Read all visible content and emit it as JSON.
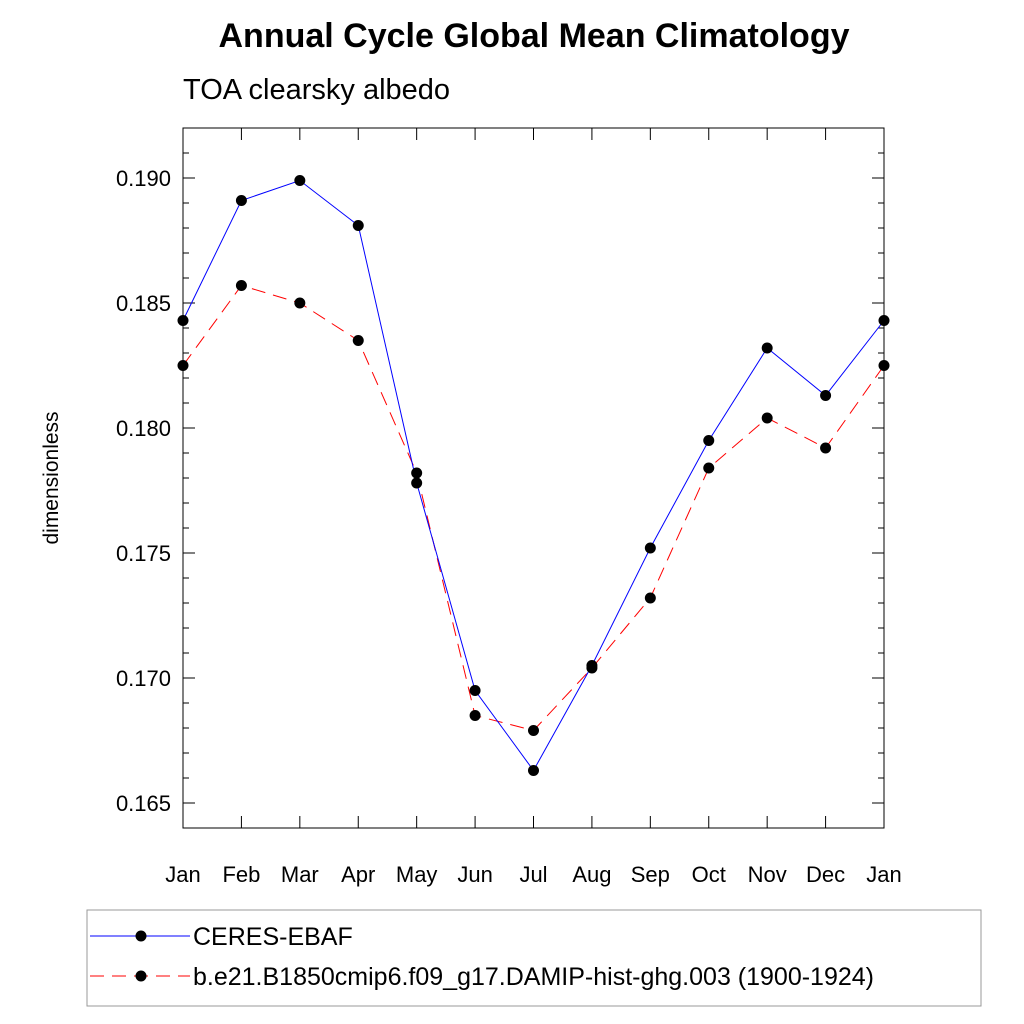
{
  "chart_data": {
    "type": "line",
    "title": "Annual Cycle Global Mean Climatology",
    "subtitle": "TOA clearsky albedo",
    "ylabel": "dimensionless",
    "xlabel": "",
    "categories": [
      "Jan",
      "Feb",
      "Mar",
      "Apr",
      "May",
      "Jun",
      "Jul",
      "Aug",
      "Sep",
      "Oct",
      "Nov",
      "Dec",
      "Jan"
    ],
    "ylim": [
      0.164,
      0.192
    ],
    "yticks": [
      "0.165",
      "0.170",
      "0.175",
      "0.180",
      "0.185",
      "0.190"
    ],
    "grid": false,
    "legend_position": "bottom",
    "series": [
      {
        "name": "CERES-EBAF",
        "color": "#0000ff",
        "line_style": "solid",
        "marker": "filled-circle",
        "values": [
          0.1843,
          0.1891,
          0.1899,
          0.1881,
          0.1778,
          0.1695,
          0.1663,
          0.1705,
          0.1752,
          0.1795,
          0.1832,
          0.1813,
          0.1843
        ]
      },
      {
        "name": "b.e21.B1850cmip6.f09_g17.DAMIP-hist-ghg.003 (1900-1924)",
        "color": "#ff0000",
        "line_style": "dashed",
        "marker": "filled-circle",
        "values": [
          0.1825,
          0.1857,
          0.185,
          0.1835,
          0.1782,
          0.1685,
          0.1679,
          0.1704,
          0.1732,
          0.1784,
          0.1804,
          0.1792,
          0.1825
        ]
      }
    ]
  }
}
